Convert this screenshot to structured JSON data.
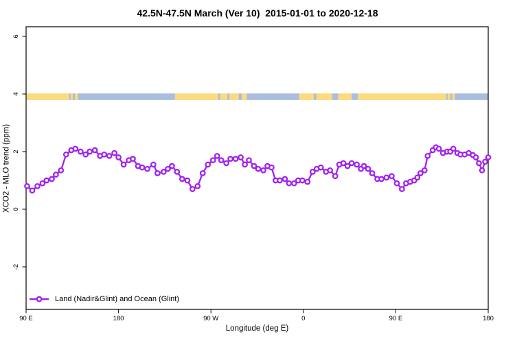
{
  "title": "42.5N-47.5N March (Ver 10)  2015-01-01 to 2020-12-18",
  "colors": {
    "line": "#A020F0",
    "marker_fill": "#FFFFFF",
    "land": "#FBDA80",
    "ocean": "#A9BFDD",
    "axis": "#000000",
    "background": "#FFFFFF"
  },
  "chart_data": {
    "type": "line",
    "title": "42.5N-47.5N March (Ver 10)  2015-01-01 to 2020-12-18",
    "xlabel": "Longitude (deg E)",
    "ylabel": "XCO2 - MLO trend (ppm)",
    "grid": false,
    "legend_position": "bottom-left-inside",
    "x_axis_note": "axis spans 450 longitude degrees: 90E -> 180 -> 90W -> 0 -> 90E -> 180",
    "xlim_axis_deg": [
      90,
      540
    ],
    "ylim": [
      -3.5,
      6.35
    ],
    "x_ticks": [
      {
        "pos": 90,
        "label": "90 E"
      },
      {
        "pos": 180,
        "label": "180"
      },
      {
        "pos": 270,
        "label": "90 W"
      },
      {
        "pos": 360,
        "label": "0"
      },
      {
        "pos": 450,
        "label": "90 E"
      },
      {
        "pos": 540,
        "label": "180"
      }
    ],
    "y_ticks": [
      {
        "pos": -2,
        "label": "-2"
      },
      {
        "pos": 0,
        "label": "0"
      },
      {
        "pos": 2,
        "label": "2"
      },
      {
        "pos": 4,
        "label": "4"
      },
      {
        "pos": 6,
        "label": "6"
      }
    ],
    "surface_band": {
      "y_range_ppm": [
        3.79,
        4.02
      ],
      "land_color_key": "land",
      "ocean_color_key": "ocean",
      "segments": [
        [
          90,
          132,
          "land"
        ],
        [
          132,
          133.5,
          "ocean"
        ],
        [
          133.5,
          135.5,
          "land"
        ],
        [
          135.5,
          137.5,
          "ocean"
        ],
        [
          137.5,
          140.5,
          "land"
        ],
        [
          140.5,
          235,
          "ocean"
        ],
        [
          235,
          277,
          "land"
        ],
        [
          277,
          279,
          "ocean"
        ],
        [
          279,
          286,
          "land"
        ],
        [
          286,
          288,
          "ocean"
        ],
        [
          288,
          297,
          "land"
        ],
        [
          297,
          300,
          "ocean"
        ],
        [
          300,
          305,
          "land"
        ],
        [
          305,
          356,
          "ocean"
        ],
        [
          356,
          370,
          "land"
        ],
        [
          370,
          372.5,
          "ocean"
        ],
        [
          372.5,
          388,
          "land"
        ],
        [
          388,
          394,
          "ocean"
        ],
        [
          394,
          407,
          "land"
        ],
        [
          407,
          413,
          "ocean"
        ],
        [
          413,
          499,
          "land"
        ],
        [
          499,
          500.5,
          "ocean"
        ],
        [
          500.5,
          503,
          "land"
        ],
        [
          503,
          505,
          "ocean"
        ],
        [
          505,
          507.5,
          "land"
        ],
        [
          507.5,
          540,
          "ocean"
        ]
      ]
    },
    "series": [
      {
        "name": "Land (Nadir&Glint) and Ocean (Glint)",
        "color": "#A020F0",
        "marker": "open-circle",
        "points": [
          [
            91,
            0.8
          ],
          [
            96,
            0.65
          ],
          [
            101,
            0.8
          ],
          [
            106,
            0.9
          ],
          [
            110,
            1.0
          ],
          [
            115,
            1.05
          ],
          [
            119,
            1.2
          ],
          [
            124,
            1.35
          ],
          [
            129,
            1.9
          ],
          [
            134,
            2.05
          ],
          [
            138,
            2.1
          ],
          [
            143,
            2.0
          ],
          [
            148,
            1.9
          ],
          [
            152,
            2.0
          ],
          [
            157,
            2.05
          ],
          [
            162,
            1.85
          ],
          [
            166,
            1.9
          ],
          [
            171,
            1.85
          ],
          [
            176,
            1.95
          ],
          [
            180,
            1.8
          ],
          [
            185,
            1.55
          ],
          [
            190,
            1.7
          ],
          [
            194,
            1.75
          ],
          [
            199,
            1.5
          ],
          [
            203,
            1.45
          ],
          [
            208,
            1.4
          ],
          [
            214,
            1.55
          ],
          [
            218,
            1.25
          ],
          [
            224,
            1.3
          ],
          [
            228,
            1.4
          ],
          [
            232,
            1.5
          ],
          [
            237,
            1.3
          ],
          [
            242,
            1.05
          ],
          [
            247,
            1.0
          ],
          [
            252,
            0.7
          ],
          [
            257,
            0.8
          ],
          [
            262,
            1.25
          ],
          [
            267,
            1.55
          ],
          [
            272,
            1.7
          ],
          [
            276,
            1.85
          ],
          [
            280,
            1.7
          ],
          [
            285,
            1.6
          ],
          [
            289,
            1.75
          ],
          [
            294,
            1.75
          ],
          [
            299,
            1.8
          ],
          [
            303,
            1.55
          ],
          [
            307,
            1.7
          ],
          [
            312,
            1.5
          ],
          [
            316,
            1.4
          ],
          [
            321,
            1.35
          ],
          [
            325,
            1.5
          ],
          [
            329,
            1.45
          ],
          [
            333,
            1.0
          ],
          [
            337,
            1.0
          ],
          [
            342,
            1.05
          ],
          [
            346,
            0.9
          ],
          [
            351,
            0.9
          ],
          [
            355,
            1.0
          ],
          [
            359,
            1.0
          ],
          [
            364,
            0.95
          ],
          [
            369,
            1.3
          ],
          [
            373,
            1.4
          ],
          [
            377,
            1.45
          ],
          [
            382,
            1.3
          ],
          [
            386,
            1.35
          ],
          [
            391,
            1.15
          ],
          [
            395,
            1.55
          ],
          [
            399,
            1.6
          ],
          [
            403,
            1.5
          ],
          [
            407,
            1.6
          ],
          [
            412,
            1.55
          ],
          [
            416,
            1.4
          ],
          [
            419,
            1.5
          ],
          [
            423,
            1.4
          ],
          [
            427,
            1.25
          ],
          [
            432,
            1.05
          ],
          [
            436,
            1.05
          ],
          [
            441,
            1.1
          ],
          [
            446,
            1.15
          ],
          [
            451,
            0.9
          ],
          [
            456,
            0.7
          ],
          [
            460,
            0.9
          ],
          [
            464,
            0.95
          ],
          [
            468,
            1.0
          ],
          [
            471,
            1.1
          ],
          [
            474,
            1.25
          ],
          [
            478,
            1.35
          ],
          [
            481,
            1.85
          ],
          [
            486,
            2.05
          ],
          [
            489,
            2.15
          ],
          [
            492,
            2.1
          ],
          [
            496,
            1.95
          ],
          [
            500,
            2.0
          ],
          [
            503,
            2.0
          ],
          [
            506,
            2.1
          ],
          [
            510,
            1.95
          ],
          [
            513,
            1.9
          ],
          [
            517,
            1.9
          ],
          [
            521,
            1.95
          ],
          [
            525,
            1.88
          ],
          [
            528,
            1.8
          ],
          [
            531,
            1.6
          ],
          [
            534,
            1.35
          ],
          [
            537,
            1.65
          ],
          [
            540,
            1.8
          ]
        ]
      }
    ]
  }
}
